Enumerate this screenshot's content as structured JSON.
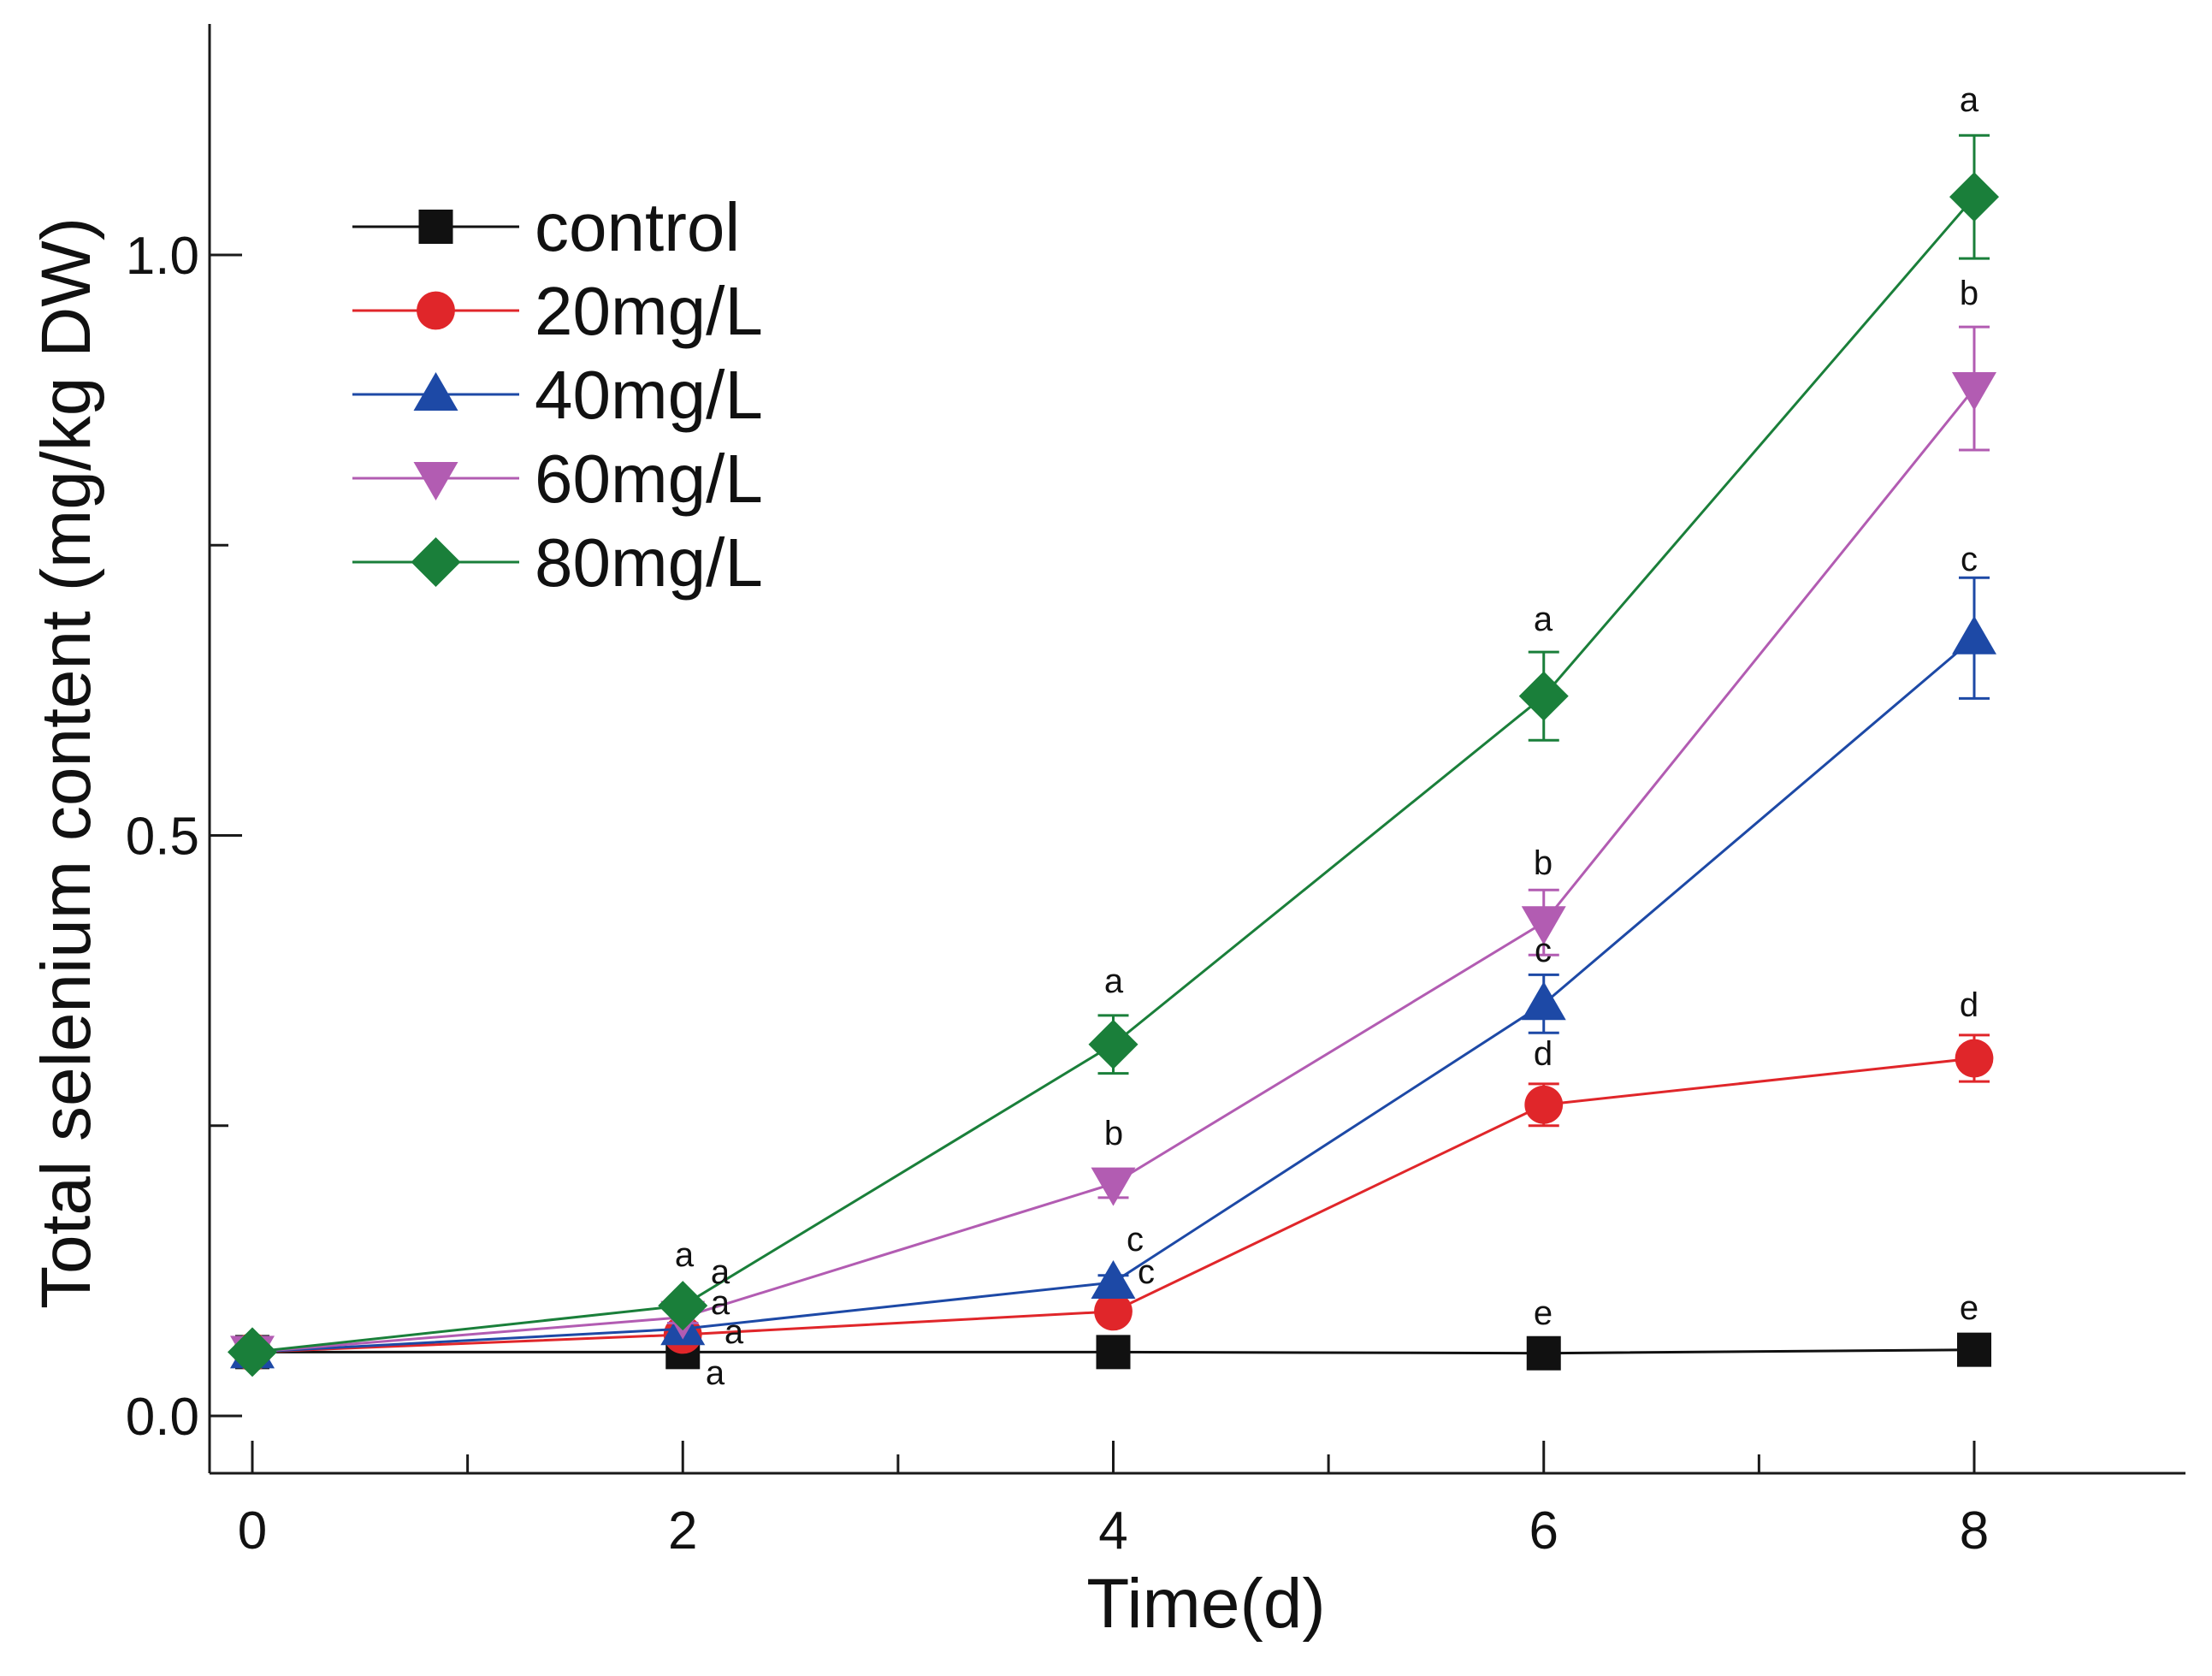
{
  "chart_data": {
    "type": "line",
    "title": "",
    "xlabel": "Time(d)",
    "ylabel": "Total selenium content (mg/kg DW)",
    "xlim": [
      -0.2,
      9
    ],
    "ylim": [
      -0.05,
      1.2
    ],
    "x_ticks_major": [
      0,
      2,
      4,
      6,
      8
    ],
    "x_ticks_minor": [
      1,
      3,
      5,
      7,
      9
    ],
    "y_ticks_major": [
      0.0,
      0.5,
      1.0
    ],
    "y_ticks_minor": [
      0.25,
      0.75
    ],
    "x_tick_labels": [
      "0",
      "2",
      "4",
      "6",
      "8"
    ],
    "y_tick_labels": [
      "0.0",
      "0.5",
      "1.0"
    ],
    "grid": false,
    "legend_position": "top-left",
    "x": [
      0,
      2,
      4,
      6,
      8
    ],
    "series": [
      {
        "name": "control",
        "color": "#111111",
        "marker": "square",
        "values": [
          0.055,
          0.055,
          0.055,
          0.054,
          0.057
        ],
        "errors": [
          0.004,
          0.004,
          0.004,
          0.004,
          0.004
        ],
        "letters": [
          "",
          "a",
          "",
          "e",
          "e"
        ]
      },
      {
        "name": "20mg/L",
        "color": "#e0262a",
        "marker": "circle",
        "values": [
          0.055,
          0.07,
          0.09,
          0.268,
          0.308
        ],
        "errors": [
          0.004,
          0.004,
          0.006,
          0.018,
          0.02
        ],
        "letters": [
          "",
          "a",
          "c",
          "d",
          "d"
        ]
      },
      {
        "name": "40mg/L",
        "color": "#1d49a6",
        "marker": "triangle-up",
        "values": [
          0.055,
          0.075,
          0.115,
          0.355,
          0.67
        ],
        "errors": [
          0.004,
          0.005,
          0.006,
          0.025,
          0.052
        ],
        "letters": [
          "",
          "a",
          "c",
          "c",
          "c"
        ]
      },
      {
        "name": "60mg/L",
        "color": "#b25cb2",
        "marker": "triangle-down",
        "values": [
          0.055,
          0.085,
          0.2,
          0.425,
          0.885
        ],
        "errors": [
          0.004,
          0.005,
          0.012,
          0.028,
          0.053
        ],
        "letters": [
          "",
          "a",
          "b",
          "b",
          "b"
        ]
      },
      {
        "name": "80mg/L",
        "color": "#1a7f3a",
        "marker": "diamond",
        "values": [
          0.055,
          0.095,
          0.32,
          0.62,
          1.05
        ],
        "errors": [
          0.004,
          0.005,
          0.025,
          0.038,
          0.053
        ],
        "letters": [
          "",
          "a",
          "a",
          "a",
          "a"
        ]
      }
    ]
  }
}
